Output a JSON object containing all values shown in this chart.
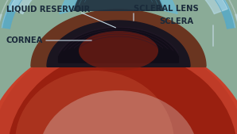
{
  "background_color": "#8aab97",
  "labels": {
    "liquid_reservoir": "LIQUID RESERVOIR",
    "scleral_lens": "SCLERAL LENS",
    "sclera": "SCLERA",
    "cornea": "CORNEA"
  },
  "label_fontsize": 7.2,
  "colors": {
    "bg": "#8aab97",
    "red_sclera": "#c8402a",
    "red_dark": "#9a2010",
    "red_medium": "#b83825",
    "red_light": "#d06040",
    "iris_dark": "#1a1520",
    "iris_mid": "#2a2030",
    "iris_brown": "#6a3520",
    "cornea_dark": "#1e3040",
    "cornea_mid": "#2a4858",
    "lens_blue_light": "#7ec5d8",
    "lens_blue_mid": "#5aaac5",
    "lens_blue_dark": "#3a8aaa",
    "lens_highlight": "#b8dcea",
    "lens_white": "#d5ecf5",
    "liquid_blue": "#6ab8d0",
    "sclera_edge": "#c0d8e0",
    "line_color": "#a8ccd8",
    "white_sclera": "#c8d8dc"
  }
}
